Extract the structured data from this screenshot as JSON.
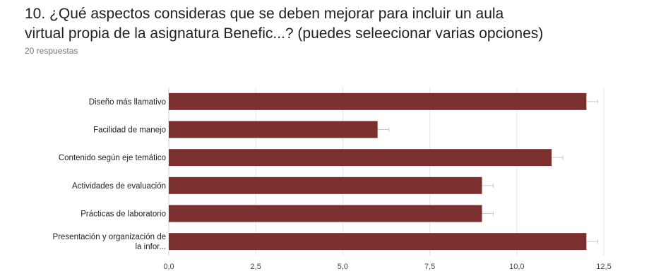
{
  "question": {
    "title_line1": "10. ¿Qué aspectos consideras que se deben mejorar para incluir un aula",
    "title_line2": "virtual propia de la asignatura Benefic...? (puedes seleecionar varias opciones)",
    "responses": "20 respuestas"
  },
  "colors": {
    "bar": "#7b2f2f",
    "gridline": "#e6e6e6",
    "axis": "#cfcfcf",
    "errorbar": "#c9c9c9"
  },
  "chart_data": {
    "type": "bar",
    "orientation": "horizontal",
    "categories": [
      [
        "Diseño más llamativo"
      ],
      [
        "Facilidad de manejo"
      ],
      [
        "Contenido según eje temático"
      ],
      [
        "Actividades de evaluación"
      ],
      [
        "Prácticas de laboratorio"
      ],
      [
        "Presentación y organización de",
        "la infor..."
      ]
    ],
    "values": [
      12,
      6,
      11,
      9,
      9,
      12
    ],
    "xlim": [
      0,
      12.5
    ],
    "xticks": [
      "0,0",
      "2,5",
      "5,0",
      "7,5",
      "10,0",
      "12,5"
    ],
    "xtick_values": [
      0,
      2.5,
      5,
      7.5,
      10,
      12.5
    ],
    "grid": true,
    "legend": "none"
  }
}
